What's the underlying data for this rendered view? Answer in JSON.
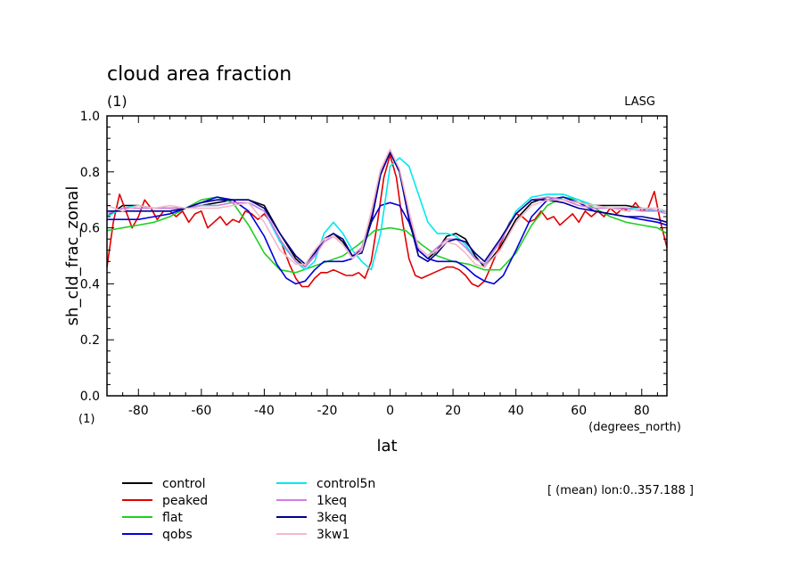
{
  "chart_data": {
    "type": "line",
    "title": "cloud area fraction",
    "subtitle": "(1)",
    "top_right_label": "LASG",
    "xlabel": "lat",
    "xunits": "(degrees_north)",
    "ylabel": "sh_cld_frac_zonal",
    "yunits": "(1)",
    "xlim": [
      -90,
      88
    ],
    "ylim": [
      0.0,
      1.0
    ],
    "xticks": [
      "-80",
      "-60",
      "-40",
      "-20",
      "0",
      "20",
      "40",
      "60",
      "80"
    ],
    "yticks": [
      "0.0",
      "0.2",
      "0.4",
      "0.6",
      "0.8",
      "1.0"
    ],
    "annotation": "[ (mean) lon:0..357.188 ]",
    "grid": false,
    "legend_position": "bottom",
    "series": [
      {
        "name": "control",
        "color": "#000000",
        "x": [
          -90,
          -85,
          -80,
          -75,
          -70,
          -65,
          -60,
          -55,
          -50,
          -45,
          -40,
          -35,
          -30,
          -27,
          -24,
          -21,
          -18,
          -15,
          -12,
          -9,
          -6,
          -3,
          0,
          3,
          6,
          9,
          12,
          15,
          18,
          21,
          24,
          27,
          30,
          35,
          40,
          45,
          50,
          55,
          60,
          65,
          70,
          75,
          80,
          85,
          88
        ],
        "y": [
          0.64,
          0.68,
          0.68,
          0.67,
          0.67,
          0.67,
          0.68,
          0.69,
          0.7,
          0.7,
          0.68,
          0.58,
          0.49,
          0.46,
          0.5,
          0.56,
          0.58,
          0.55,
          0.5,
          0.52,
          0.64,
          0.8,
          0.87,
          0.8,
          0.64,
          0.52,
          0.49,
          0.52,
          0.57,
          0.58,
          0.56,
          0.5,
          0.46,
          0.53,
          0.63,
          0.69,
          0.71,
          0.7,
          0.69,
          0.68,
          0.68,
          0.68,
          0.67,
          0.66,
          0.66
        ]
      },
      {
        "name": "peaked",
        "color": "#e00000",
        "x": [
          -90,
          -88,
          -86,
          -84,
          -82,
          -80,
          -78,
          -76,
          -74,
          -72,
          -70,
          -68,
          -66,
          -64,
          -62,
          -60,
          -58,
          -56,
          -54,
          -52,
          -50,
          -48,
          -46,
          -44,
          -42,
          -40,
          -38,
          -35,
          -32,
          -30,
          -28,
          -26,
          -24,
          -22,
          -20,
          -18,
          -16,
          -14,
          -12,
          -10,
          -8,
          -6,
          -4,
          -2,
          0,
          2,
          4,
          6,
          8,
          10,
          12,
          14,
          16,
          18,
          20,
          22,
          24,
          26,
          28,
          30,
          32,
          35,
          38,
          40,
          42,
          44,
          46,
          48,
          50,
          52,
          54,
          56,
          58,
          60,
          62,
          64,
          66,
          68,
          70,
          72,
          74,
          76,
          78,
          80,
          82,
          84,
          86,
          88
        ],
        "y": [
          0.46,
          0.62,
          0.72,
          0.66,
          0.6,
          0.64,
          0.7,
          0.67,
          0.63,
          0.66,
          0.66,
          0.64,
          0.66,
          0.62,
          0.65,
          0.66,
          0.6,
          0.62,
          0.64,
          0.61,
          0.63,
          0.62,
          0.66,
          0.65,
          0.63,
          0.65,
          0.62,
          0.56,
          0.47,
          0.42,
          0.39,
          0.39,
          0.42,
          0.44,
          0.44,
          0.45,
          0.44,
          0.43,
          0.43,
          0.44,
          0.42,
          0.48,
          0.62,
          0.78,
          0.86,
          0.78,
          0.62,
          0.49,
          0.43,
          0.42,
          0.43,
          0.44,
          0.45,
          0.46,
          0.46,
          0.45,
          0.43,
          0.4,
          0.39,
          0.41,
          0.46,
          0.54,
          0.62,
          0.65,
          0.64,
          0.62,
          0.63,
          0.66,
          0.63,
          0.64,
          0.61,
          0.63,
          0.65,
          0.62,
          0.66,
          0.64,
          0.66,
          0.64,
          0.67,
          0.65,
          0.67,
          0.66,
          0.69,
          0.66,
          0.67,
          0.73,
          0.62,
          0.53
        ]
      },
      {
        "name": "flat",
        "color": "#20d020",
        "x": [
          -90,
          -85,
          -80,
          -75,
          -70,
          -65,
          -60,
          -55,
          -50,
          -45,
          -40,
          -35,
          -30,
          -25,
          -20,
          -15,
          -10,
          -5,
          0,
          5,
          10,
          15,
          20,
          25,
          30,
          35,
          40,
          45,
          50,
          55,
          60,
          65,
          70,
          75,
          80,
          85,
          88
        ],
        "y": [
          0.59,
          0.6,
          0.61,
          0.62,
          0.64,
          0.67,
          0.7,
          0.71,
          0.69,
          0.61,
          0.51,
          0.45,
          0.44,
          0.46,
          0.48,
          0.5,
          0.54,
          0.59,
          0.6,
          0.59,
          0.54,
          0.5,
          0.48,
          0.47,
          0.45,
          0.45,
          0.51,
          0.61,
          0.68,
          0.71,
          0.7,
          0.67,
          0.64,
          0.62,
          0.61,
          0.6,
          0.58
        ]
      },
      {
        "name": "qobs",
        "color": "#0000e0",
        "x": [
          -90,
          -85,
          -80,
          -75,
          -70,
          -65,
          -60,
          -55,
          -50,
          -45,
          -40,
          -36,
          -33,
          -30,
          -27,
          -24,
          -21,
          -18,
          -15,
          -12,
          -9,
          -6,
          -3,
          0,
          3,
          6,
          9,
          12,
          15,
          18,
          21,
          24,
          27,
          30,
          33,
          36,
          40,
          45,
          50,
          55,
          60,
          65,
          70,
          75,
          80,
          85,
          88
        ],
        "y": [
          0.63,
          0.63,
          0.63,
          0.64,
          0.65,
          0.67,
          0.69,
          0.71,
          0.7,
          0.66,
          0.57,
          0.47,
          0.42,
          0.4,
          0.41,
          0.45,
          0.48,
          0.48,
          0.48,
          0.49,
          0.52,
          0.62,
          0.68,
          0.69,
          0.68,
          0.62,
          0.52,
          0.49,
          0.48,
          0.48,
          0.48,
          0.46,
          0.43,
          0.41,
          0.4,
          0.43,
          0.52,
          0.64,
          0.7,
          0.71,
          0.69,
          0.66,
          0.65,
          0.64,
          0.63,
          0.62,
          0.61
        ]
      },
      {
        "name": "control5n",
        "color": "#00e8f0",
        "x": [
          -90,
          -85,
          -80,
          -75,
          -70,
          -65,
          -60,
          -55,
          -50,
          -45,
          -40,
          -35,
          -30,
          -27,
          -24,
          -21,
          -18,
          -15,
          -12,
          -9,
          -6,
          -3,
          0,
          3,
          6,
          9,
          12,
          15,
          18,
          21,
          24,
          27,
          30,
          35,
          40,
          45,
          50,
          55,
          60,
          65,
          70,
          75,
          80,
          85,
          88
        ],
        "y": [
          0.64,
          0.67,
          0.68,
          0.67,
          0.67,
          0.67,
          0.68,
          0.68,
          0.69,
          0.69,
          0.66,
          0.55,
          0.48,
          0.45,
          0.48,
          0.58,
          0.62,
          0.58,
          0.52,
          0.48,
          0.45,
          0.58,
          0.82,
          0.85,
          0.82,
          0.72,
          0.62,
          0.58,
          0.58,
          0.57,
          0.54,
          0.49,
          0.47,
          0.55,
          0.66,
          0.71,
          0.72,
          0.72,
          0.7,
          0.68,
          0.67,
          0.67,
          0.67,
          0.66,
          0.66
        ]
      },
      {
        "name": "1keq",
        "color": "#d080e0",
        "x": [
          -90,
          -85,
          -80,
          -75,
          -70,
          -65,
          -60,
          -55,
          -50,
          -45,
          -40,
          -35,
          -30,
          -27,
          -24,
          -21,
          -18,
          -15,
          -12,
          -9,
          -6,
          -3,
          0,
          3,
          6,
          9,
          12,
          15,
          18,
          21,
          24,
          27,
          30,
          35,
          40,
          45,
          50,
          55,
          60,
          65,
          70,
          75,
          80,
          85,
          88
        ],
        "y": [
          0.65,
          0.67,
          0.67,
          0.67,
          0.67,
          0.67,
          0.68,
          0.68,
          0.69,
          0.69,
          0.66,
          0.56,
          0.48,
          0.46,
          0.5,
          0.55,
          0.57,
          0.54,
          0.5,
          0.53,
          0.65,
          0.8,
          0.88,
          0.8,
          0.65,
          0.53,
          0.5,
          0.53,
          0.56,
          0.56,
          0.53,
          0.49,
          0.47,
          0.55,
          0.65,
          0.7,
          0.71,
          0.7,
          0.68,
          0.67,
          0.67,
          0.67,
          0.66,
          0.66,
          0.65
        ]
      },
      {
        "name": "3keq",
        "color": "#000090",
        "x": [
          -90,
          -85,
          -80,
          -75,
          -70,
          -65,
          -60,
          -55,
          -50,
          -45,
          -40,
          -35,
          -30,
          -27,
          -24,
          -21,
          -18,
          -15,
          -12,
          -9,
          -6,
          -3,
          0,
          3,
          6,
          9,
          12,
          15,
          18,
          21,
          24,
          27,
          30,
          35,
          40,
          45,
          50,
          55,
          60,
          65,
          70,
          75,
          80,
          85,
          88
        ],
        "y": [
          0.66,
          0.66,
          0.66,
          0.66,
          0.66,
          0.67,
          0.69,
          0.7,
          0.7,
          0.7,
          0.67,
          0.58,
          0.5,
          0.47,
          0.51,
          0.56,
          0.58,
          0.56,
          0.5,
          0.51,
          0.62,
          0.79,
          0.87,
          0.8,
          0.63,
          0.5,
          0.48,
          0.51,
          0.55,
          0.56,
          0.55,
          0.51,
          0.48,
          0.56,
          0.65,
          0.7,
          0.7,
          0.69,
          0.67,
          0.66,
          0.65,
          0.64,
          0.64,
          0.63,
          0.62
        ]
      },
      {
        "name": "3kw1",
        "color": "#f5b8c8",
        "x": [
          -90,
          -85,
          -80,
          -75,
          -70,
          -65,
          -60,
          -55,
          -50,
          -45,
          -40,
          -35,
          -30,
          -27,
          -24,
          -21,
          -18,
          -15,
          -12,
          -9,
          -6,
          -3,
          0,
          3,
          6,
          9,
          12,
          15,
          18,
          21,
          24,
          27,
          30,
          35,
          40,
          45,
          50,
          55,
          60,
          65,
          70,
          75,
          80,
          85,
          88
        ],
        "y": [
          0.68,
          0.66,
          0.68,
          0.67,
          0.68,
          0.67,
          0.67,
          0.67,
          0.68,
          0.69,
          0.62,
          0.52,
          0.47,
          0.47,
          0.52,
          0.56,
          0.57,
          0.54,
          0.49,
          0.52,
          0.66,
          0.81,
          0.88,
          0.81,
          0.66,
          0.53,
          0.5,
          0.52,
          0.55,
          0.54,
          0.51,
          0.47,
          0.46,
          0.52,
          0.62,
          0.68,
          0.7,
          0.7,
          0.69,
          0.68,
          0.67,
          0.66,
          0.67,
          0.67,
          0.66
        ]
      }
    ]
  }
}
